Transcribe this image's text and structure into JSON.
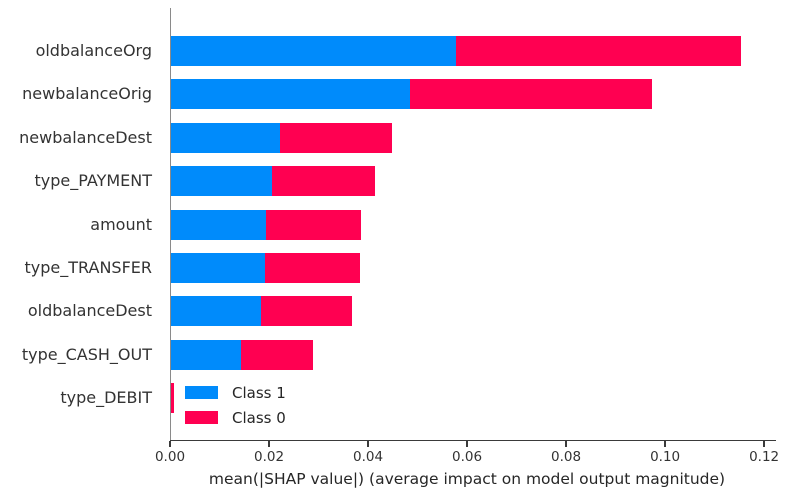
{
  "chart_data": {
    "type": "bar",
    "orientation": "horizontal",
    "stacked": true,
    "title": "",
    "xlabel": "mean(|SHAP value|) (average impact on model output magnitude)",
    "ylabel": "",
    "categories": [
      "oldbalanceOrg",
      "newbalanceOrig",
      "newbalanceDest",
      "type_PAYMENT",
      "amount",
      "type_TRANSFER",
      "oldbalanceDest",
      "type_CASH_OUT",
      "type_DEBIT"
    ],
    "series": [
      {
        "name": "Class 1",
        "color": "#008bfb",
        "values": [
          0.0576,
          0.0483,
          0.0221,
          0.0205,
          0.0192,
          0.019,
          0.0182,
          0.0141,
          0.0001
        ]
      },
      {
        "name": "Class 0",
        "color": "#ff0051",
        "values": [
          0.0576,
          0.0488,
          0.0226,
          0.0208,
          0.0192,
          0.0192,
          0.0184,
          0.0146,
          0.0005
        ]
      }
    ],
    "totals": [
      0.1152,
      0.0971,
      0.0447,
      0.0413,
      0.0384,
      0.0382,
      0.0366,
      0.0287,
      0.0006
    ],
    "x_ticks": [
      "0.00",
      "0.02",
      "0.04",
      "0.06",
      "0.08",
      "0.10",
      "0.12"
    ],
    "x_tick_values": [
      0.0,
      0.02,
      0.04,
      0.06,
      0.08,
      0.1,
      0.12
    ],
    "xlim": [
      0,
      0.1224
    ],
    "grid": false,
    "legend_position": "lower-left-inside"
  },
  "colors": {
    "class1_blue": "#008bfb",
    "class0_red": "#ff0051",
    "text": "#333333",
    "spine_left": "#8a8a8a",
    "spine_bottom": "#3a3a3a",
    "background": "#ffffff"
  }
}
